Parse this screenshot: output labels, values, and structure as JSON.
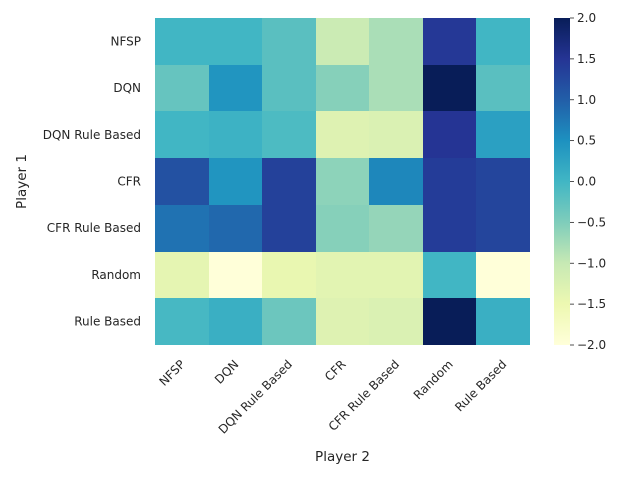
{
  "chart_data": {
    "type": "heatmap",
    "title": "",
    "xlabel": "Player 2",
    "ylabel": "Player 1",
    "x_categories": [
      "NFSP",
      "DQN",
      "DQN Rule Based",
      "CFR",
      "CFR Rule Based",
      "Random",
      "Rule Based"
    ],
    "y_categories": [
      "NFSP",
      "DQN",
      "DQN Rule Based",
      "CFR",
      "CFR Rule Based",
      "Random",
      "Rule Based"
    ],
    "values": [
      [
        0.0,
        0.0,
        -0.2,
        -1.05,
        -0.8,
        1.45,
        0.0
      ],
      [
        -0.3,
        0.45,
        -0.2,
        -0.55,
        -0.8,
        2.0,
        -0.2
      ],
      [
        0.0,
        0.05,
        -0.1,
        -1.3,
        -1.25,
        1.5,
        0.3
      ],
      [
        1.15,
        0.45,
        1.35,
        -0.6,
        0.6,
        1.4,
        1.3
      ],
      [
        0.8,
        0.9,
        1.35,
        -0.55,
        -0.65,
        1.4,
        1.3
      ],
      [
        -1.4,
        -2.0,
        -1.45,
        -1.35,
        -1.35,
        0.0,
        -2.0
      ],
      [
        -0.05,
        0.1,
        -0.35,
        -1.3,
        -1.25,
        2.0,
        0.1
      ]
    ],
    "zlim": [
      -2.0,
      2.0
    ],
    "colormap": "YlGnBu",
    "colorbar_ticks": [
      "2.0",
      "1.5",
      "1.0",
      "0.5",
      "0.0",
      "−0.5",
      "−1.0",
      "−1.5",
      "−2.0"
    ],
    "colorbar_tick_values": [
      2.0,
      1.5,
      1.0,
      0.5,
      0.0,
      -0.5,
      -1.0,
      -1.5,
      -2.0
    ],
    "grid": false,
    "legend": "colorbar-right"
  }
}
